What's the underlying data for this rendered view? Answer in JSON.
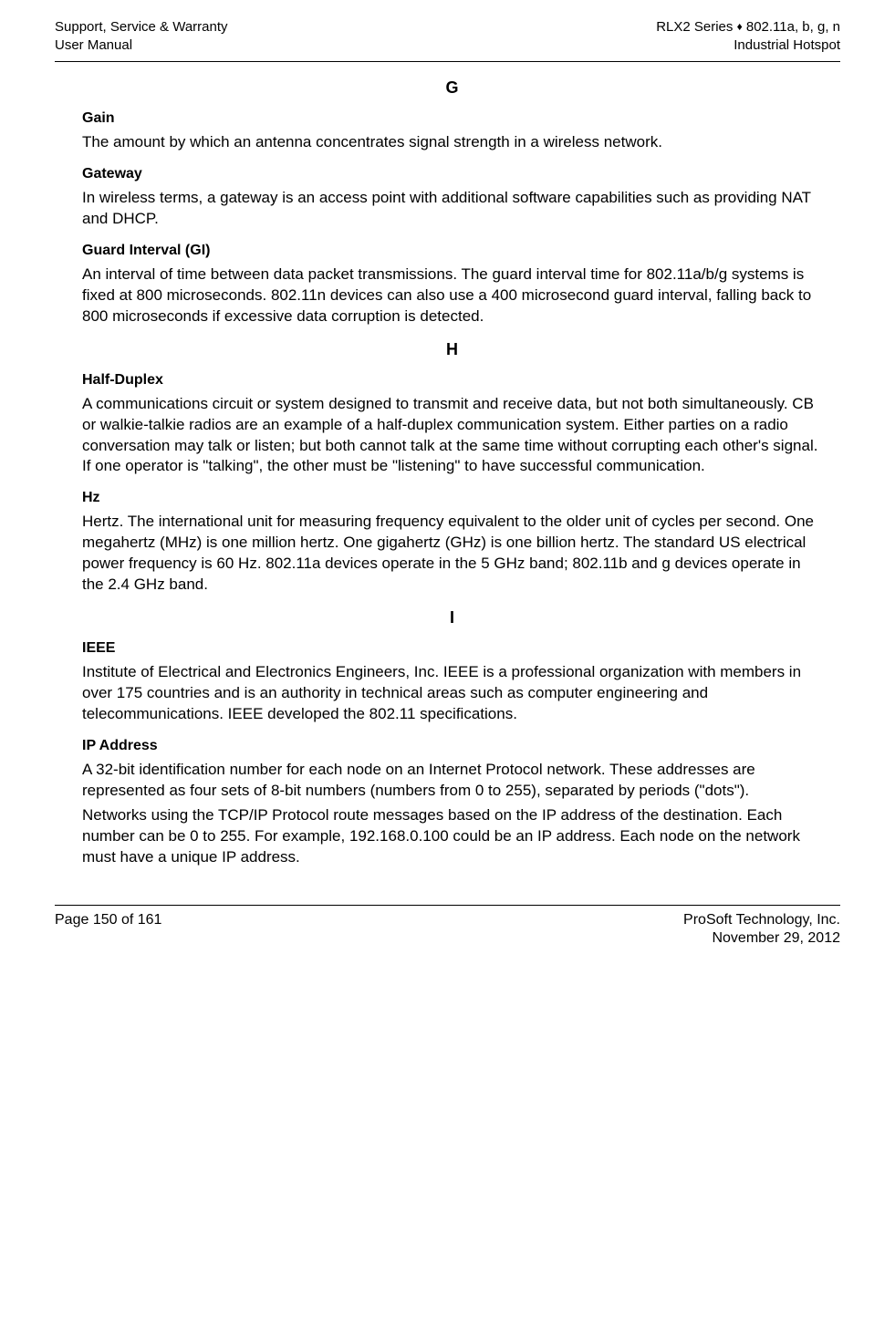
{
  "header": {
    "left_line1": "Support, Service & Warranty",
    "left_line2": "User Manual",
    "right_line1_a": "RLX2 Series ",
    "right_line1_b": " 802.11a, b, g, n",
    "right_line2": "Industrial Hotspot",
    "diamond": "♦"
  },
  "sections": {
    "G": {
      "letter": "G",
      "gain": {
        "term": "Gain",
        "def": "The amount by which an antenna concentrates signal strength in a wireless network."
      },
      "gateway": {
        "term": "Gateway",
        "def": "In wireless terms, a gateway is an access point with additional software capabilities such as providing NAT and DHCP."
      },
      "guard": {
        "term": "Guard Interval (GI)",
        "def": "An interval of time between data packet transmissions. The guard interval time for 802.11a/b/g systems is fixed at 800 microseconds. 802.11n devices can also use a 400 microsecond guard interval, falling back to 800 microseconds if excessive data corruption is detected."
      }
    },
    "H": {
      "letter": "H",
      "half": {
        "term": "Half-Duplex",
        "def": "A communications circuit or system designed to transmit and receive data, but not both simultaneously. CB or walkie-talkie radios are an example of a half-duplex communication system. Either parties on a radio conversation may talk or listen; but both cannot talk at the same time without corrupting each other's signal. If one operator is \"talking\", the other must be \"listening\" to have successful communication."
      },
      "hz": {
        "term": "Hz",
        "def": "Hertz. The international unit for measuring frequency equivalent to the older unit of cycles per second. One megahertz (MHz) is one million hertz. One gigahertz (GHz) is one billion hertz. The standard US electrical power frequency is 60 Hz. 802.11a devices operate in the 5 GHz band; 802.11b and g devices operate in the 2.4 GHz band."
      }
    },
    "I": {
      "letter": "I",
      "ieee": {
        "term": "IEEE",
        "def": "Institute of Electrical and Electronics Engineers, Inc. IEEE is a professional organization with members in over 175 countries and is an authority in technical areas such as computer engineering and telecommunications. IEEE developed the 802.11 specifications."
      },
      "ip": {
        "term": "IP Address",
        "def1": "A 32-bit identification number for each node on an Internet Protocol network. These addresses are represented as four sets of 8-bit numbers (numbers from 0 to 255), separated by periods (\"dots\").",
        "def2": "Networks using the TCP/IP Protocol route messages based on the IP address of the destination. Each number can be 0 to 255. For example, 192.168.0.100 could be an IP address. Each node on the network must have a unique IP address."
      }
    }
  },
  "footer": {
    "left": "Page 150 of 161",
    "right_line1": "ProSoft Technology, Inc.",
    "right_line2": "November 29, 2012"
  }
}
